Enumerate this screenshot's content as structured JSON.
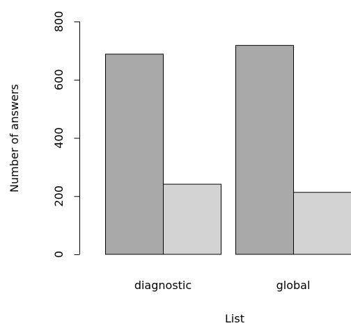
{
  "chart_data": {
    "type": "bar",
    "layout": "grouped",
    "title": "",
    "xlabel": "List",
    "ylabel": "Number of answers",
    "categories": [
      "diagnostic",
      "global"
    ],
    "series": [
      {
        "values": [
          688,
          718
        ],
        "color": "#a9a9a9"
      },
      {
        "values": [
          241,
          213
        ],
        "color": "#d3d3d3"
      }
    ],
    "ylim": [
      0,
      800
    ],
    "yticks": [
      0,
      200,
      400,
      600,
      800
    ],
    "grid": false,
    "legend": "none"
  }
}
